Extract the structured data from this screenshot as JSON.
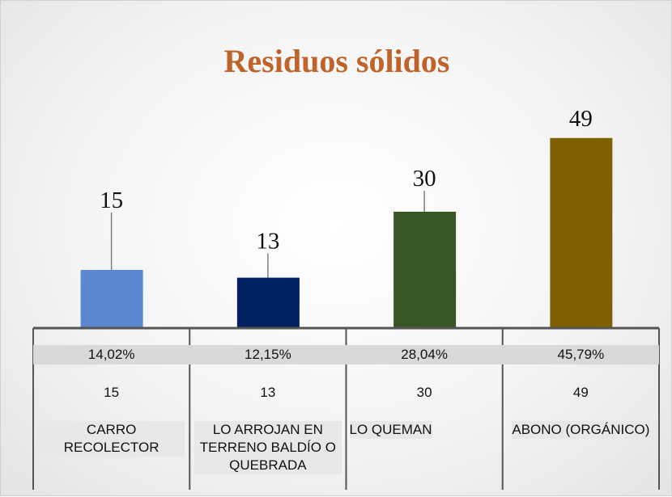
{
  "chart_data": {
    "type": "bar",
    "title": "Residuos sólidos",
    "categories": [
      "CARRO RECOLECTOR",
      "LO ARROJAN EN TERRENO BALDÍO O QUEBRADA",
      "LO QUEMAN",
      "ABONO (ORGÁNICO)"
    ],
    "values": [
      15,
      13,
      30,
      49
    ],
    "colors": [
      "#5b87d0",
      "#002060",
      "#375623",
      "#7f6000"
    ],
    "percent_values": [
      14.02,
      12.15,
      28.04,
      45.79
    ],
    "percent_labels": [
      "14,02%",
      "12,15%",
      "28,04%",
      "45,79%"
    ],
    "ylim": [
      0,
      50
    ]
  }
}
